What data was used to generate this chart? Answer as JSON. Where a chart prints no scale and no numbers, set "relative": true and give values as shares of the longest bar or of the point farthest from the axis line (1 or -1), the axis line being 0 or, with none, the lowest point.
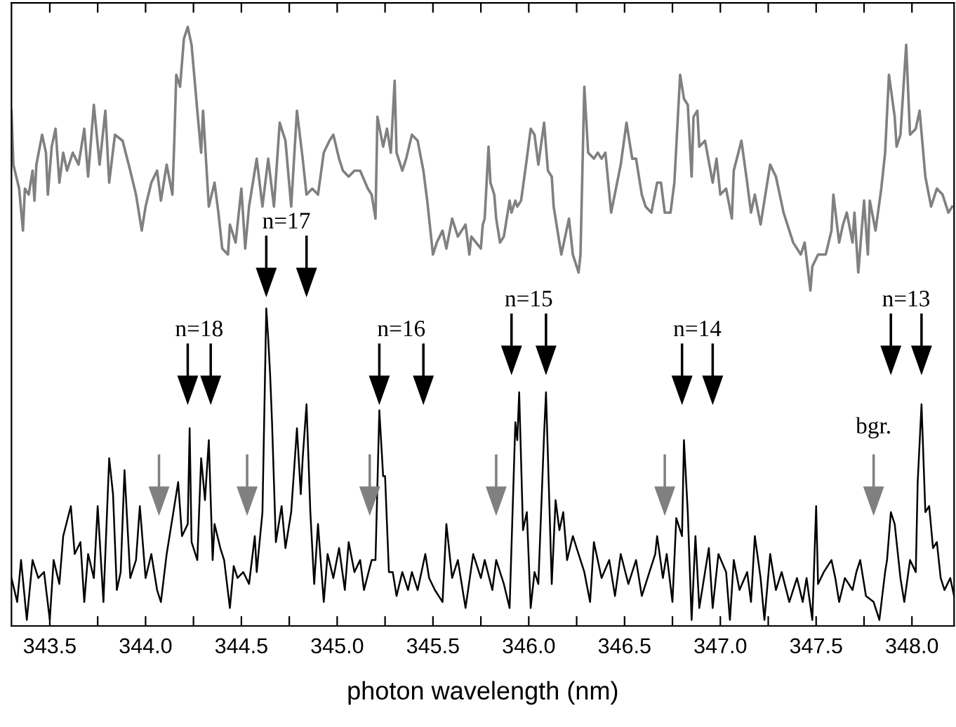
{
  "chart_data": {
    "type": "line",
    "relative": true,
    "xlabel": "photon wavelength (nm)",
    "xlim": [
      343.3,
      348.22
    ],
    "xticks": [
      {
        "value": 343.5,
        "label": "343.5"
      },
      {
        "value": 343.75,
        "label": null
      },
      {
        "value": 344.0,
        "label": "344.0"
      },
      {
        "value": 344.25,
        "label": null
      },
      {
        "value": 344.5,
        "label": "344.5"
      },
      {
        "value": 344.75,
        "label": null
      },
      {
        "value": 345.0,
        "label": "345.0"
      },
      {
        "value": 345.25,
        "label": null
      },
      {
        "value": 345.5,
        "label": "345.5"
      },
      {
        "value": 345.75,
        "label": null
      },
      {
        "value": 346.0,
        "label": "346.0"
      },
      {
        "value": 346.25,
        "label": null
      },
      {
        "value": 346.5,
        "label": "346.5"
      },
      {
        "value": 346.75,
        "label": null
      },
      {
        "value": 347.0,
        "label": "347.0"
      },
      {
        "value": 347.25,
        "label": null
      },
      {
        "value": 347.5,
        "label": "347.5"
      },
      {
        "value": 347.75,
        "label": null
      },
      {
        "value": 348.0,
        "label": "348.0"
      }
    ],
    "tick_labels": "x",
    "grid": false,
    "legend": false,
    "marker": "none",
    "line_style": "solid",
    "series": [
      {
        "color": "#808080",
        "x": [
          343.3,
          343.31,
          343.34,
          343.36,
          343.37,
          343.39,
          343.41,
          343.42,
          343.43,
          343.46,
          343.48,
          343.49,
          343.51,
          343.53,
          343.55,
          343.57,
          343.59,
          343.62,
          343.65,
          343.68,
          343.7,
          343.73,
          343.76,
          343.79,
          343.81,
          343.84,
          343.88,
          343.92,
          343.95,
          343.98,
          344.0,
          344.03,
          344.06,
          344.08,
          344.11,
          344.14,
          344.15,
          344.16,
          344.18,
          344.2,
          344.22,
          344.24,
          344.27,
          344.29,
          344.3,
          344.33,
          344.36,
          344.38,
          344.4,
          344.43,
          344.44,
          344.47,
          344.5,
          344.52,
          344.54,
          344.58,
          344.61,
          344.64,
          344.67,
          344.7,
          344.73,
          344.76,
          344.79,
          344.82,
          344.84,
          344.87,
          344.9,
          344.93,
          344.96,
          344.98,
          345.01,
          345.03,
          345.06,
          345.09,
          345.12,
          345.16,
          345.18,
          345.2,
          345.21,
          345.24,
          345.26,
          345.28,
          345.3,
          345.31,
          345.34,
          345.36,
          345.39,
          345.42,
          345.45,
          345.47,
          345.5,
          345.52,
          345.55,
          345.57,
          345.6,
          345.63,
          345.67,
          345.69,
          345.7,
          345.75,
          345.76,
          345.77,
          345.79,
          345.8,
          345.82,
          345.83,
          345.85,
          345.87,
          345.9,
          345.91,
          345.93,
          345.94,
          345.96,
          345.99,
          346.01,
          346.03,
          346.05,
          346.08,
          346.1,
          346.12,
          346.13,
          346.17,
          346.19,
          346.21,
          346.23,
          346.26,
          346.27,
          346.29,
          346.31,
          346.34,
          346.36,
          346.38,
          346.4,
          346.43,
          346.48,
          346.51,
          346.54,
          346.56,
          346.59,
          346.61,
          346.64,
          346.67,
          346.69,
          346.71,
          346.74,
          346.76,
          346.79,
          346.81,
          346.83,
          346.85,
          346.86,
          346.88,
          346.89,
          346.92,
          346.96,
          346.98,
          347.0,
          347.03,
          347.06,
          347.07,
          347.11,
          347.14,
          347.16,
          347.18,
          347.21,
          347.24,
          347.26,
          347.29,
          347.33,
          347.38,
          347.42,
          347.44,
          347.47,
          347.48,
          347.51,
          347.55,
          347.58,
          347.59,
          347.62,
          347.64,
          347.66,
          347.69,
          347.7,
          347.72,
          347.75,
          347.77,
          347.78,
          347.81,
          347.84,
          347.86,
          347.88,
          347.91,
          347.92,
          347.94,
          347.97,
          347.99,
          348.02,
          348.04,
          348.07,
          348.1,
          348.13,
          348.16,
          348.19,
          348.21
        ],
        "values": [
          0.86,
          0.77,
          0.73,
          0.66,
          0.73,
          0.72,
          0.76,
          0.71,
          0.77,
          0.82,
          0.79,
          0.72,
          0.8,
          0.83,
          0.74,
          0.79,
          0.76,
          0.79,
          0.77,
          0.83,
          0.75,
          0.87,
          0.77,
          0.86,
          0.74,
          0.82,
          0.81,
          0.76,
          0.72,
          0.66,
          0.7,
          0.74,
          0.76,
          0.71,
          0.77,
          0.72,
          0.81,
          0.92,
          0.9,
          0.98,
          1.0,
          0.97,
          0.86,
          0.79,
          0.86,
          0.7,
          0.74,
          0.69,
          0.63,
          0.62,
          0.67,
          0.64,
          0.73,
          0.63,
          0.7,
          0.78,
          0.7,
          0.78,
          0.7,
          0.84,
          0.81,
          0.7,
          0.86,
          0.78,
          0.72,
          0.73,
          0.72,
          0.79,
          0.81,
          0.82,
          0.78,
          0.76,
          0.75,
          0.76,
          0.76,
          0.73,
          0.72,
          0.68,
          0.85,
          0.8,
          0.83,
          0.79,
          0.91,
          0.79,
          0.76,
          0.78,
          0.82,
          0.81,
          0.76,
          0.71,
          0.62,
          0.64,
          0.66,
          0.63,
          0.68,
          0.65,
          0.67,
          0.62,
          0.65,
          0.63,
          0.67,
          0.68,
          0.8,
          0.74,
          0.72,
          0.68,
          0.64,
          0.65,
          0.71,
          0.69,
          0.71,
          0.7,
          0.71,
          0.78,
          0.83,
          0.82,
          0.77,
          0.84,
          0.76,
          0.75,
          0.7,
          0.62,
          0.65,
          0.68,
          0.62,
          0.59,
          0.62,
          0.9,
          0.79,
          0.78,
          0.79,
          0.78,
          0.79,
          0.69,
          0.77,
          0.84,
          0.78,
          0.78,
          0.72,
          0.7,
          0.69,
          0.74,
          0.74,
          0.69,
          0.69,
          0.74,
          0.92,
          0.88,
          0.87,
          0.75,
          0.85,
          0.86,
          0.8,
          0.81,
          0.74,
          0.78,
          0.72,
          0.73,
          0.68,
          0.76,
          0.81,
          0.74,
          0.69,
          0.72,
          0.67,
          0.73,
          0.77,
          0.75,
          0.69,
          0.64,
          0.62,
          0.64,
          0.56,
          0.6,
          0.62,
          0.62,
          0.66,
          0.72,
          0.64,
          0.67,
          0.69,
          0.64,
          0.69,
          0.59,
          0.71,
          0.62,
          0.71,
          0.66,
          0.73,
          0.79,
          0.92,
          0.85,
          0.8,
          0.82,
          0.97,
          0.82,
          0.83,
          0.86,
          0.75,
          0.7,
          0.73,
          0.72,
          0.69,
          0.7
        ]
      },
      {
        "color": "#000000",
        "x": [
          343.3,
          343.33,
          343.35,
          343.38,
          343.41,
          343.44,
          343.47,
          343.5,
          343.52,
          343.55,
          343.57,
          343.61,
          343.63,
          343.66,
          343.68,
          343.7,
          343.73,
          343.75,
          343.78,
          343.81,
          343.83,
          343.85,
          343.87,
          343.89,
          343.92,
          343.95,
          343.97,
          344.0,
          344.03,
          344.06,
          344.08,
          344.11,
          344.14,
          344.17,
          344.19,
          344.22,
          344.23,
          344.24,
          344.27,
          344.29,
          344.31,
          344.33,
          344.35,
          344.36,
          344.39,
          344.41,
          344.44,
          344.46,
          344.48,
          344.51,
          344.54,
          344.57,
          344.58,
          344.61,
          344.63,
          344.64,
          344.65,
          344.66,
          344.68,
          344.71,
          344.73,
          344.76,
          344.79,
          344.81,
          344.82,
          344.84,
          344.86,
          344.88,
          344.9,
          344.93,
          344.95,
          344.98,
          345.01,
          345.04,
          345.06,
          345.09,
          345.12,
          345.14,
          345.18,
          345.2,
          345.22,
          345.24,
          345.25,
          345.27,
          345.29,
          345.31,
          345.34,
          345.37,
          345.39,
          345.42,
          345.46,
          345.48,
          345.51,
          345.55,
          345.57,
          345.6,
          345.63,
          345.67,
          345.71,
          345.75,
          345.77,
          345.81,
          345.83,
          345.87,
          345.9,
          345.93,
          345.94,
          345.95,
          345.97,
          345.99,
          346.01,
          346.03,
          346.05,
          346.08,
          346.09,
          346.12,
          346.14,
          346.16,
          346.18,
          346.2,
          346.23,
          346.26,
          346.29,
          346.32,
          346.34,
          346.38,
          346.42,
          346.45,
          346.48,
          346.52,
          346.56,
          346.59,
          346.63,
          346.66,
          346.67,
          346.7,
          346.72,
          346.75,
          346.77,
          346.8,
          346.81,
          346.83,
          346.85,
          346.87,
          346.89,
          346.92,
          346.94,
          346.96,
          346.99,
          347.03,
          347.05,
          347.07,
          347.1,
          347.14,
          347.16,
          347.18,
          347.21,
          347.23,
          347.26,
          347.29,
          347.32,
          347.36,
          347.4,
          347.43,
          347.45,
          347.48,
          347.5,
          347.51,
          347.54,
          347.58,
          347.6,
          347.62,
          347.65,
          347.69,
          347.71,
          347.73,
          347.76,
          347.8,
          347.83,
          347.86,
          347.87,
          347.89,
          347.91,
          347.94,
          347.96,
          347.99,
          348.02,
          348.03,
          348.05,
          348.07,
          348.09,
          348.11,
          348.13,
          348.15,
          348.17,
          348.2,
          348.22
        ],
        "values": [
          0.08,
          0.04,
          0.11,
          0.01,
          0.11,
          0.08,
          0.09,
          0.01,
          0.11,
          0.07,
          0.15,
          0.2,
          0.12,
          0.14,
          0.04,
          0.12,
          0.08,
          0.2,
          0.04,
          0.28,
          0.22,
          0.06,
          0.09,
          0.26,
          0.08,
          0.11,
          0.2,
          0.08,
          0.12,
          0.06,
          0.04,
          0.12,
          0.18,
          0.24,
          0.15,
          0.17,
          0.33,
          0.14,
          0.11,
          0.28,
          0.21,
          0.31,
          0.11,
          0.17,
          0.13,
          0.11,
          0.03,
          0.1,
          0.08,
          0.09,
          0.07,
          0.15,
          0.09,
          0.19,
          0.53,
          0.48,
          0.42,
          0.34,
          0.14,
          0.2,
          0.13,
          0.19,
          0.33,
          0.22,
          0.28,
          0.37,
          0.19,
          0.07,
          0.17,
          0.04,
          0.12,
          0.08,
          0.13,
          0.06,
          0.14,
          0.09,
          0.11,
          0.06,
          0.11,
          0.11,
          0.36,
          0.25,
          0.25,
          0.09,
          0.09,
          0.05,
          0.09,
          0.06,
          0.09,
          0.06,
          0.12,
          0.08,
          0.06,
          0.04,
          0.17,
          0.08,
          0.11,
          0.03,
          0.12,
          0.08,
          0.11,
          0.06,
          0.11,
          0.07,
          0.03,
          0.34,
          0.31,
          0.39,
          0.16,
          0.19,
          0.03,
          0.09,
          0.07,
          0.32,
          0.39,
          0.07,
          0.21,
          0.16,
          0.19,
          0.11,
          0.15,
          0.12,
          0.09,
          0.04,
          0.14,
          0.08,
          0.11,
          0.05,
          0.12,
          0.07,
          0.11,
          0.05,
          0.09,
          0.12,
          0.15,
          0.08,
          0.12,
          0.04,
          0.18,
          0.15,
          0.31,
          0.19,
          0.01,
          0.15,
          0.03,
          0.09,
          0.13,
          0.03,
          0.12,
          0.09,
          0.01,
          0.11,
          0.06,
          0.09,
          0.04,
          0.15,
          0.08,
          0.01,
          0.12,
          0.06,
          0.09,
          0.04,
          0.08,
          0.04,
          0.08,
          0.01,
          0.2,
          0.07,
          0.09,
          0.11,
          0.08,
          0.04,
          0.08,
          0.06,
          0.09,
          0.11,
          0.05,
          0.04,
          0.01,
          0.09,
          0.11,
          0.19,
          0.17,
          0.08,
          0.04,
          0.11,
          0.09,
          0.24,
          0.37,
          0.19,
          0.2,
          0.13,
          0.14,
          0.08,
          0.06,
          0.08,
          0.05
        ]
      },
      {
        "type": "scatter",
        "marker": "triangle",
        "color": "#000000",
        "x": [
          344.22,
          344.34,
          344.63,
          344.84,
          345.22,
          345.45,
          345.91,
          346.09,
          346.8,
          346.96,
          347.89,
          348.05
        ],
        "values": [
          0.42,
          0.42,
          0.6,
          0.6,
          0.42,
          0.42,
          0.47,
          0.47,
          0.42,
          0.42,
          0.47,
          0.47
        ]
      },
      {
        "type": "scatter",
        "marker": "triangle",
        "color": "#808080",
        "x": [
          344.07,
          344.53,
          345.17,
          345.83,
          346.71,
          347.8
        ],
        "values": [
          0.235,
          0.235,
          0.235,
          0.235,
          0.235,
          0.235
        ]
      }
    ],
    "annotations": [
      "n=18",
      "n=17",
      "n=16",
      "n=15",
      "n=14",
      "n=13",
      "bgr."
    ]
  }
}
